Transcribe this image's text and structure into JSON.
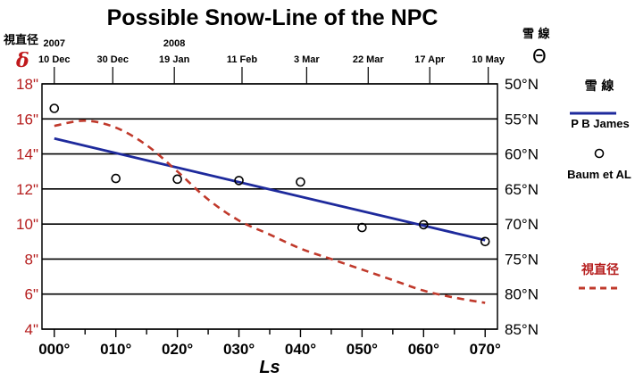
{
  "chart_data": {
    "type": "line",
    "title": "Possible Snow-Line of the NPC",
    "xlabel": "Ls",
    "x_ticks": [
      "000°",
      "010°",
      "020°",
      "030°",
      "040°",
      "050°",
      "060°",
      "070°"
    ],
    "xlim": [
      -2,
      72
    ],
    "date_labels": [
      {
        "ls": 0,
        "date": "10 Dec",
        "year": "2007"
      },
      {
        "ls": 9.5,
        "date": "30 Dec"
      },
      {
        "ls": 19.5,
        "date": "19 Jan",
        "year": "2008"
      },
      {
        "ls": 30.5,
        "date": "11 Feb"
      },
      {
        "ls": 41,
        "date": "3 Mar"
      },
      {
        "ls": 51,
        "date": "22 Mar"
      },
      {
        "ls": 61,
        "date": "17 Apr"
      },
      {
        "ls": 70.5,
        "date": "10 May"
      }
    ],
    "left_axis": {
      "header": "視直径",
      "symbol": "δ",
      "ticks": [
        "18\"",
        "16\"",
        "14\"",
        "12\"",
        "10\"",
        "8\"",
        "6\"",
        "4\""
      ],
      "range": [
        4,
        18
      ],
      "color": "#b51c1c"
    },
    "right_axis": {
      "header": "雪 線",
      "symbol": "Θ",
      "ticks": [
        "50°N",
        "55°N",
        "60°N",
        "65°N",
        "70°N",
        "75°N",
        "80°N",
        "85°N"
      ],
      "range": [
        50,
        85
      ],
      "inverted": true
    },
    "grid": true,
    "series": [
      {
        "name": "P B James",
        "style": "solid",
        "color": "#1e2a9c",
        "axis": "right",
        "x": [
          0,
          70
        ],
        "y": [
          57.8,
          72.3
        ]
      },
      {
        "name": "Baum et AL",
        "style": "markers",
        "color": "#000000",
        "axis": "right",
        "x": [
          0,
          10,
          20,
          30,
          40,
          50,
          60,
          70
        ],
        "y": [
          53.5,
          63.5,
          63.6,
          63.8,
          64.0,
          70.5,
          70.1,
          72.5
        ]
      },
      {
        "name": "視直径",
        "style": "dashed",
        "color": "#c0392b",
        "axis": "left",
        "x": [
          0,
          5,
          10,
          15,
          20,
          25,
          30,
          35,
          40,
          45,
          50,
          55,
          60,
          65,
          70
        ],
        "y": [
          15.6,
          15.9,
          15.5,
          14.5,
          13.0,
          11.4,
          10.2,
          9.4,
          8.6,
          8.0,
          7.4,
          6.8,
          6.2,
          5.8,
          5.5
        ]
      }
    ],
    "legend": {
      "placement": "right",
      "header": "雪 線",
      "items": [
        "P B James",
        "Baum et AL",
        "視直径"
      ]
    }
  }
}
